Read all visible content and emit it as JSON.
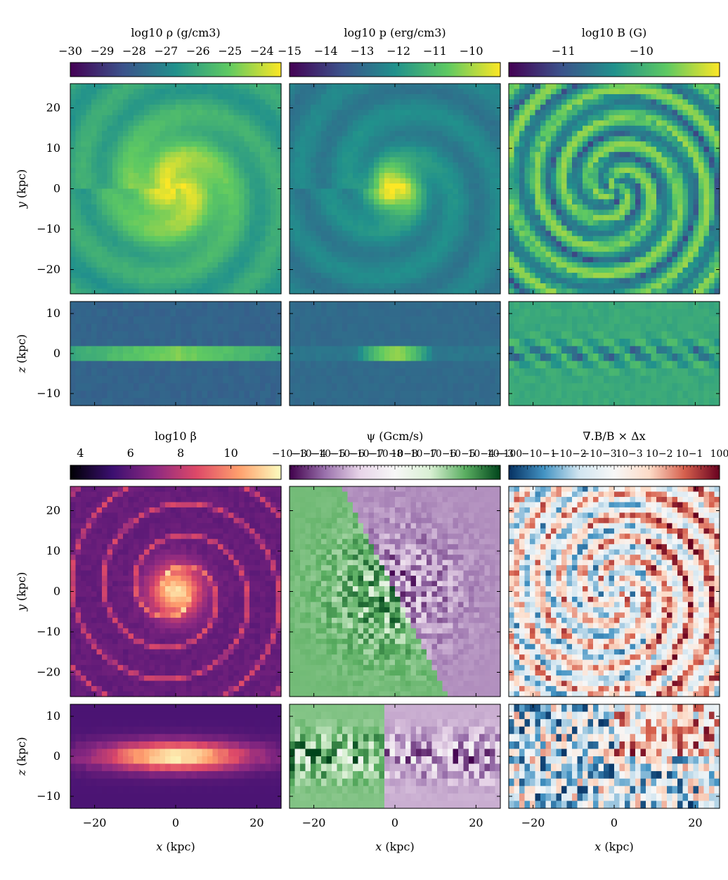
{
  "chart_data": [
    {
      "type": "heatmap",
      "title": "log10 ρ (g/cm3)",
      "colormap": "viridis",
      "colorbar": {
        "ticks": [
          -30,
          -29,
          -28,
          -27,
          -26,
          -25,
          -24
        ],
        "range": [
          -30,
          -23.4
        ]
      },
      "quantity": "density",
      "panels": [
        {
          "view": "face-on",
          "xlim": [
            -26,
            26
          ],
          "ylim": [
            -26,
            26
          ],
          "ylabel": "y (kpc)",
          "yticks": [
            20,
            10,
            0,
            -10,
            -20
          ]
        },
        {
          "view": "edge-on",
          "xlim": [
            -26,
            26
          ],
          "ylim": [
            -13,
            13
          ],
          "ylabel": "z (kpc)",
          "yticks": [
            10,
            0,
            -10
          ]
        }
      ]
    },
    {
      "type": "heatmap",
      "title": "log10 p (erg/cm3)",
      "colormap": "viridis",
      "colorbar": {
        "ticks": [
          -15,
          -14,
          -13,
          -12,
          -11,
          -10
        ],
        "range": [
          -15,
          -9.2
        ]
      },
      "quantity": "pressure",
      "panels": [
        {
          "view": "face-on"
        },
        {
          "view": "edge-on"
        }
      ]
    },
    {
      "type": "heatmap",
      "title": "log10 B (G)",
      "colormap": "viridis",
      "colorbar": {
        "ticks": [
          -11,
          -10
        ],
        "range": [
          -11.7,
          -9.0
        ]
      },
      "quantity": "magnetic field strength",
      "panels": [
        {
          "view": "face-on"
        },
        {
          "view": "edge-on"
        }
      ]
    },
    {
      "type": "heatmap",
      "title": "log10 β",
      "colormap": "magma",
      "colorbar": {
        "ticks": [
          4,
          6,
          8,
          10
        ],
        "range": [
          3.6,
          12.0
        ]
      },
      "quantity": "plasma beta",
      "panels": [
        {
          "view": "face-on",
          "ylabel": "y (kpc)",
          "yticks": [
            20,
            10,
            0,
            -10,
            -20
          ]
        },
        {
          "view": "edge-on",
          "ylabel": "z (kpc)",
          "yticks": [
            10,
            0,
            -10
          ],
          "xlabel": "x (kpc)",
          "xticks": [
            -20,
            0,
            20
          ]
        }
      ]
    },
    {
      "type": "heatmap",
      "title": "ψ (Gcm/s)",
      "colormap": "PRGn",
      "colorbar": {
        "scale": "symlog",
        "ticks": [
          "−10−3",
          "−10−4",
          "−10−5",
          "−10−6",
          "−10−7",
          "−10−8",
          "10−8",
          "10−7",
          "10−6",
          "10−5",
          "10−4",
          "10−3"
        ]
      },
      "quantity": "cleaning potential",
      "panels": [
        {
          "view": "face-on"
        },
        {
          "view": "edge-on",
          "xlabel": "x (kpc)",
          "xticks": [
            -20,
            0,
            20
          ]
        }
      ]
    },
    {
      "type": "heatmap",
      "title": "∇.B/B × Δx",
      "colormap": "RdBu_r",
      "colorbar": {
        "scale": "symlog",
        "ticks": [
          "−100",
          "−10−1",
          "−10−2",
          "−10−3",
          "10−3",
          "10−2",
          "10−1",
          "100"
        ]
      },
      "quantity": "divergence error",
      "panels": [
        {
          "view": "face-on"
        },
        {
          "view": "edge-on",
          "xlabel": "x (kpc)",
          "xticks": [
            -20,
            0,
            20
          ]
        }
      ]
    }
  ],
  "labels": {
    "y_kpc": "(kpc)",
    "z_kpc": "(kpc)",
    "x_kpc": "(kpc)"
  },
  "colors": {
    "viridis": [
      "#440154",
      "#3b528b",
      "#21918c",
      "#5ec962",
      "#fde725"
    ],
    "magma": [
      "#000004",
      "#3b0f70",
      "#8c2981",
      "#de4968",
      "#fe9f6d",
      "#fcfdbf"
    ],
    "PRGn": [
      "#40004b",
      "#9970ab",
      "#e7d4e8",
      "#f7f7f7",
      "#d9f0d3",
      "#5aae61",
      "#00441b"
    ],
    "RdBu_r": [
      "#053061",
      "#4393c3",
      "#d1e5f0",
      "#f7f7f7",
      "#fddbc7",
      "#d6604d",
      "#67001f"
    ]
  }
}
